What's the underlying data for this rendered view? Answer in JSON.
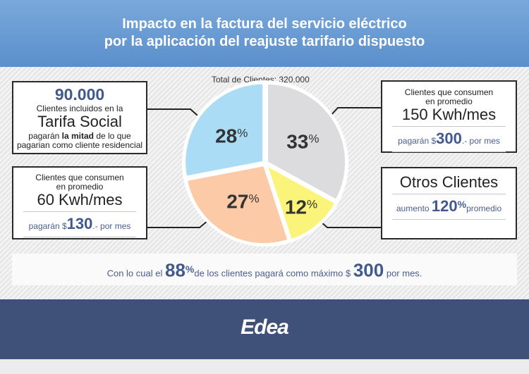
{
  "header": {
    "line1": "Impacto en la factura del servicio eléctrico",
    "line2": "por la aplicación del reajuste tarifario dispuesto"
  },
  "total_label": "Total de Clientes: 320.000",
  "box_social": {
    "count": "90.000",
    "line1": "Clientes incluidos en la",
    "title": "Tarifa Social",
    "line2a": "pagarán ",
    "line2b": "la mitad",
    "line2c": " de lo que",
    "line3": "pagarian como cliente residencial"
  },
  "box_60": {
    "line1": "Clientes que consumen",
    "line2": "en promedio",
    "title": "60 Kwh/mes",
    "pay_pre": "pagarán $",
    "amount": "130",
    "pay_post": ".- por mes"
  },
  "box_150": {
    "line1": "Clientes que consumen",
    "line2": "en promedio",
    "title": "150 Kwh/mes",
    "pay_pre": "pagarán $",
    "amount": "300",
    "pay_post": ".- por mes"
  },
  "box_otros": {
    "title": "Otros Clientes",
    "pre": "aumento",
    "amount": "120",
    "pct": "%",
    "post": "promedio"
  },
  "banner": {
    "pre": "Con lo cual el",
    "pct_value": "88",
    "pct": "%",
    "mid": "de los clientes pagará como máximo $",
    "amount": "300",
    "post": "por mes."
  },
  "footer": {
    "logo": "Edea"
  },
  "chart_data": {
    "type": "pie",
    "title": "Total de Clientes: 320.000",
    "categories": [
      "150 Kwh/mes",
      "Otros Clientes",
      "60 Kwh/mes",
      "Tarifa Social"
    ],
    "values": [
      33,
      12,
      27,
      28
    ],
    "labels": [
      "33",
      "12",
      "27",
      "28"
    ],
    "colors": [
      "#dcdcde",
      "#fbf47a",
      "#fccaa6",
      "#abdcf6"
    ]
  }
}
